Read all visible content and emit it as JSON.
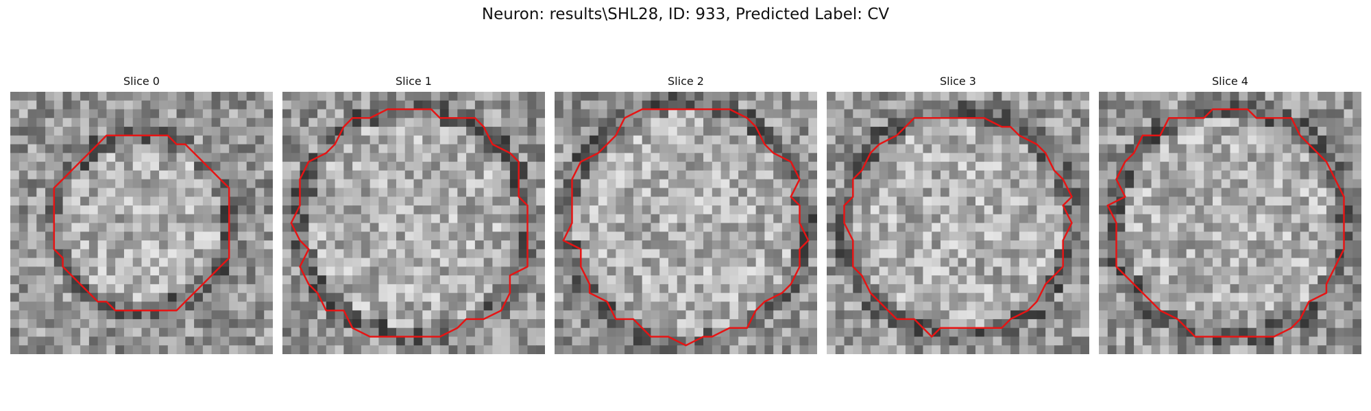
{
  "figure": {
    "title": "Neuron: results\\SHL28, ID: 933, Predicted Label: CV",
    "contour_color": "#e61414",
    "colormap": "gray"
  },
  "panels": [
    {
      "title": "Slice 0",
      "seed": 11,
      "cell_radius": 0.3,
      "contour_radius": 0.34
    },
    {
      "title": "Slice 1",
      "seed": 23,
      "cell_radius": 0.4,
      "contour_radius": 0.44
    },
    {
      "title": "Slice 2",
      "seed": 37,
      "cell_radius": 0.42,
      "contour_radius": 0.44
    },
    {
      "title": "Slice 3",
      "seed": 41,
      "cell_radius": 0.4,
      "contour_radius": 0.42
    },
    {
      "title": "Slice 4",
      "seed": 59,
      "cell_radius": 0.41,
      "contour_radius": 0.44
    }
  ]
}
